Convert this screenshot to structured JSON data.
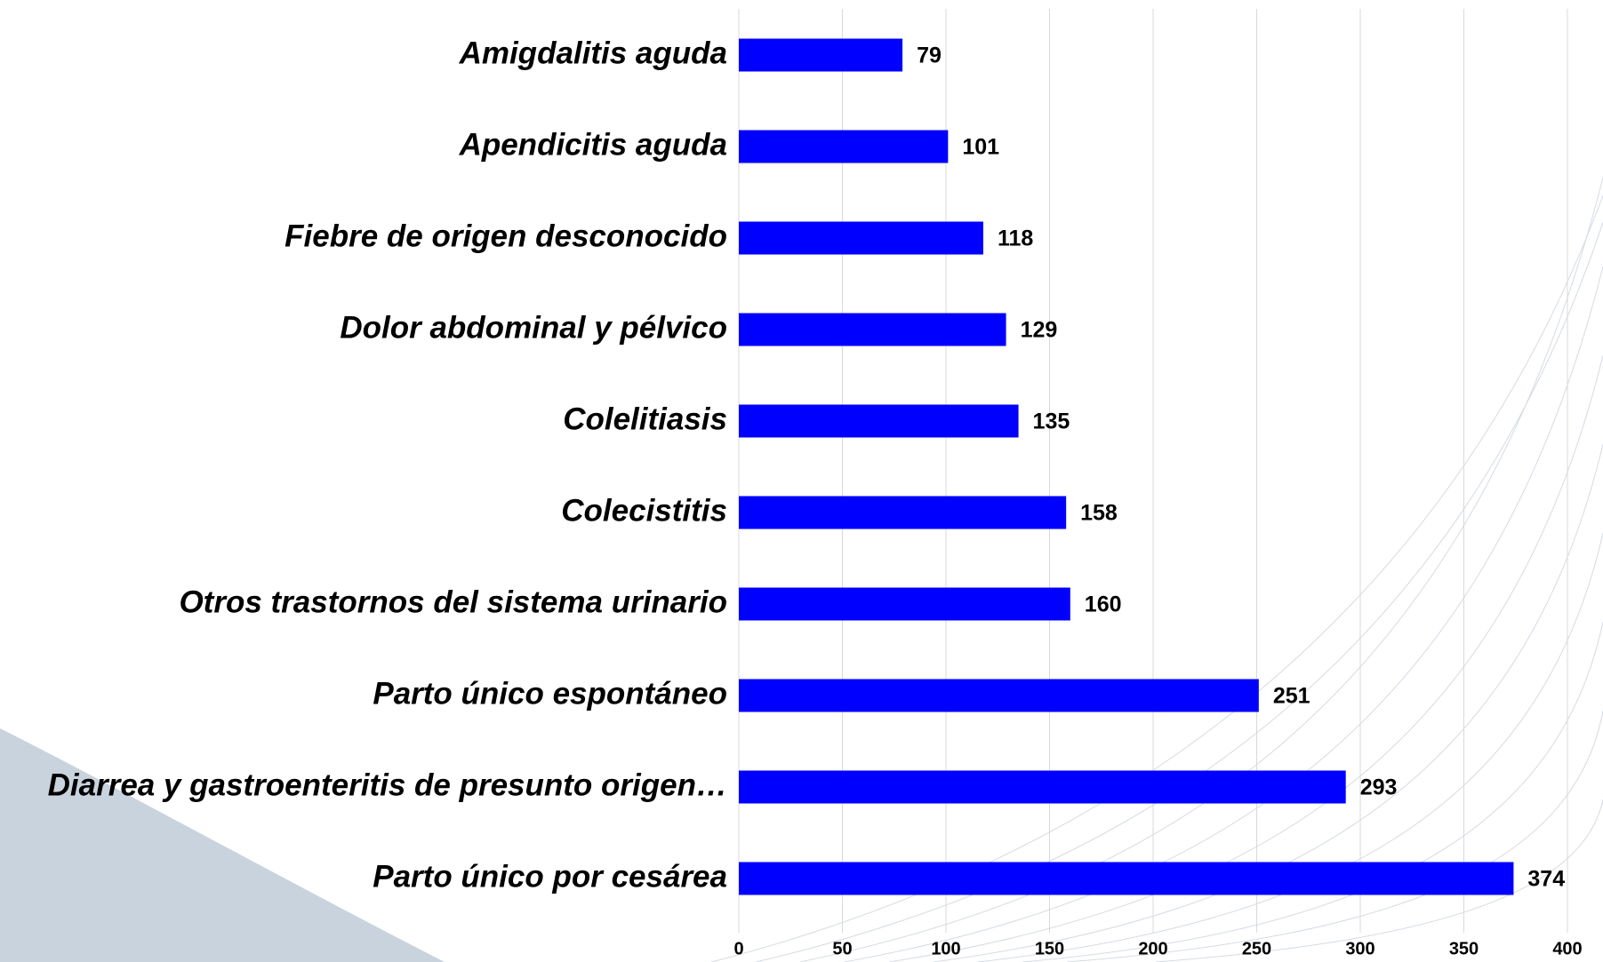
{
  "chart_data": {
    "type": "bar",
    "orientation": "horizontal",
    "categories": [
      "Amigdalitis aguda",
      "Apendicitis aguda",
      "Fiebre de origen desconocido",
      "Dolor abdominal y pélvico",
      "Colelitiasis",
      "Colecistitis",
      "Otros trastornos del sistema urinario",
      "Parto único espontáneo",
      "Diarrea y gastroenteritis de presunto origen…",
      "Parto único por cesárea"
    ],
    "values": [
      79,
      101,
      118,
      129,
      135,
      158,
      160,
      251,
      293,
      374
    ],
    "color": "#0000ff",
    "xlim": [
      0,
      400
    ],
    "xticks": [
      0,
      50,
      100,
      150,
      200,
      250,
      300,
      350,
      400
    ],
    "grid": true
  }
}
